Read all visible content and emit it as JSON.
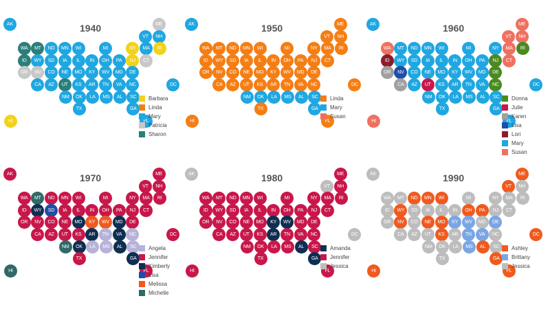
{
  "colors": {
    "Barbara": "#f2d21b",
    "Linda": "#f57e14",
    "Mary": "#1fa7e1",
    "Patricia": "#c8c8c8",
    "Sharon": "#2a7f7b",
    "Susan": "#f07060",
    "Donna": "#4a8a20",
    "Julie": "#c8174a",
    "Karen": "#a0a0a0",
    "Lisa": "#1e4fa8",
    "Lori": "#8c1c2c",
    "Angela": "#b7b2d8",
    "Jennifer": "#c8174a",
    "Kimberly": "#0f2e52",
    "Melissa": "#f05a1e",
    "Michelle": "#2f6a67",
    "Amanda": "#0f2e52",
    "Jessica": "#bdbdbd",
    "Ashley": "#f05a1e",
    "Brittany": "#7aa6e6"
  },
  "panels": [
    {
      "year": "1940",
      "legend": [
        "Barbara",
        "Linda",
        "Mary",
        "Patricia",
        "Sharon"
      ],
      "states": {
        "AK": "Mary",
        "ME": "Patricia",
        "VT": "Mary",
        "NH": "Mary",
        "WA": "Sharon",
        "MT": "Sharon",
        "ND": "Mary",
        "MN": "Mary",
        "WI": "Mary",
        "MI": "Mary",
        "NY": "Barbara",
        "MA": "Mary",
        "RI": "Barbara",
        "ID": "Sharon",
        "WY": "Mary",
        "SD": "Mary",
        "IA": "Mary",
        "IL": "Mary",
        "IN": "Mary",
        "OH": "Mary",
        "PA": "Mary",
        "NJ": "Barbara",
        "CT": "Patricia",
        "OR": "Patricia",
        "NV": "Patricia",
        "CO": "Mary",
        "NE": "Mary",
        "MO": "Mary",
        "KY": "Mary",
        "WV": "Mary",
        "MD": "Mary",
        "DE": "Mary",
        "CA": "Mary",
        "AZ": "Mary",
        "UT": "Sharon",
        "KS": "Mary",
        "AR": "Mary",
        "TN": "Mary",
        "VA": "Mary",
        "NC": "Mary",
        "DC": "Mary",
        "NM": "Mary",
        "OK": "Mary",
        "LA": "Mary",
        "MS": "Mary",
        "AL": "Mary",
        "SC": "Mary",
        "TX": "Mary",
        "GA": "Mary",
        "HI": "Barbara",
        "FL": "Mary"
      }
    },
    {
      "year": "1950",
      "legend": [
        "Linda",
        "Mary",
        "Susan"
      ],
      "states": {
        "AK": "Mary",
        "ME": "Linda",
        "VT": "Linda",
        "NH": "Linda",
        "WA": "Linda",
        "MT": "Linda",
        "ND": "Linda",
        "MN": "Linda",
        "WI": "Linda",
        "MI": "Linda",
        "NY": "Linda",
        "MA": "Linda",
        "RI": "Linda",
        "ID": "Linda",
        "WY": "Linda",
        "SD": "Linda",
        "IA": "Linda",
        "IL": "Linda",
        "IN": "Linda",
        "OH": "Linda",
        "PA": "Linda",
        "NJ": "Linda",
        "CT": "Linda",
        "OR": "Linda",
        "NV": "Linda",
        "CO": "Linda",
        "NE": "Linda",
        "MO": "Linda",
        "KY": "Linda",
        "WV": "Linda",
        "MD": "Linda",
        "DE": "Linda",
        "CA": "Linda",
        "AZ": "Linda",
        "UT": "Linda",
        "KS": "Linda",
        "AR": "Linda",
        "TN": "Linda",
        "VA": "Linda",
        "NC": "Linda",
        "DC": "Linda",
        "NM": "Mary",
        "OK": "Mary",
        "LA": "Mary",
        "MS": "Mary",
        "AL": "Mary",
        "SC": "Mary",
        "TX": "Linda",
        "GA": "Mary",
        "HI": "Linda",
        "FL": "Linda"
      }
    },
    {
      "year": "1960",
      "legend": [
        "Donna",
        "Julie",
        "Karen",
        "Lisa",
        "Lori",
        "Mary",
        "Susan"
      ],
      "states": {
        "AK": "Mary",
        "ME": "Susan",
        "VT": "Susan",
        "NH": "Susan",
        "WA": "Susan",
        "MT": "Mary",
        "ND": "Mary",
        "MN": "Mary",
        "WI": "Mary",
        "MI": "Mary",
        "NY": "Mary",
        "MA": "Susan",
        "RI": "Donna",
        "ID": "Lori",
        "WY": "Mary",
        "SD": "Mary",
        "IA": "Mary",
        "IL": "Mary",
        "IN": "Mary",
        "OH": "Mary",
        "PA": "Mary",
        "NJ": "Donna",
        "CT": "Susan",
        "OR": "Karen",
        "NV": "Lisa",
        "CO": "Mary",
        "NE": "Mary",
        "MO": "Mary",
        "KY": "Mary",
        "WV": "Mary",
        "MD": "Mary",
        "DE": "Donna",
        "CA": "Karen",
        "AZ": "Mary",
        "UT": "Julie",
        "KS": "Mary",
        "AR": "Mary",
        "TN": "Mary",
        "VA": "Mary",
        "NC": "Donna",
        "DC": "Mary",
        "NM": "Mary",
        "OK": "Mary",
        "LA": "Mary",
        "MS": "Mary",
        "AL": "Mary",
        "SC": "Mary",
        "TX": "Mary",
        "GA": "Mary",
        "HI": "Susan",
        "FL": "Mary"
      }
    },
    {
      "year": "1970",
      "legend": [
        "Angela",
        "Jennifer",
        "Kimberly",
        "Lisa",
        "Melissa",
        "Michelle"
      ],
      "states": {
        "AK": "Jennifer",
        "ME": "Jennifer",
        "VT": "Jennifer",
        "NH": "Jennifer",
        "WA": "Jennifer",
        "MT": "Michelle",
        "ND": "Jennifer",
        "MN": "Jennifer",
        "WI": "Jennifer",
        "MI": "Jennifer",
        "NY": "Jennifer",
        "MA": "Jennifer",
        "RI": "Jennifer",
        "ID": "Jennifer",
        "WY": "Kimberly",
        "SD": "Lisa",
        "IA": "Jennifer",
        "IL": "Jennifer",
        "IN": "Jennifer",
        "OH": "Jennifer",
        "PA": "Jennifer",
        "NJ": "Jennifer",
        "CT": "Jennifer",
        "OR": "Jennifer",
        "NV": "Jennifer",
        "CO": "Jennifer",
        "NE": "Jennifer",
        "MO": "Kimberly",
        "KY": "Melissa",
        "WV": "Melissa",
        "MD": "Kimberly",
        "DE": "Jennifer",
        "CA": "Jennifer",
        "AZ": "Jennifer",
        "UT": "Jennifer",
        "KS": "Jennifer",
        "AR": "Kimberly",
        "TN": "Angela",
        "VA": "Kimberly",
        "NC": "Angela",
        "DC": "Jennifer",
        "NM": "Michelle",
        "OK": "Kimberly",
        "LA": "Angela",
        "MS": "Angela",
        "AL": "Kimberly",
        "SC": "Angela",
        "TX": "Jennifer",
        "GA": "Kimberly",
        "HI": "Michelle",
        "FL": "Jennifer"
      }
    },
    {
      "year": "1980",
      "legend": [
        "Amanda",
        "Jennifer",
        "Jessica"
      ],
      "states": {
        "AK": "Jessica",
        "ME": "Jennifer",
        "VT": "Jessica",
        "NH": "Jennifer",
        "WA": "Jennifer",
        "MT": "Jennifer",
        "ND": "Jennifer",
        "MN": "Jennifer",
        "WI": "Jennifer",
        "MI": "Jennifer",
        "NY": "Jennifer",
        "MA": "Jennifer",
        "RI": "Jennifer",
        "ID": "Jennifer",
        "WY": "Jennifer",
        "SD": "Jennifer",
        "IA": "Jennifer",
        "IL": "Jennifer",
        "IN": "Jennifer",
        "OH": "Jennifer",
        "PA": "Jennifer",
        "NJ": "Jennifer",
        "CT": "Jennifer",
        "OR": "Jennifer",
        "NV": "Jennifer",
        "CO": "Jennifer",
        "NE": "Jennifer",
        "MO": "Jennifer",
        "KY": "Amanda",
        "WV": "Amanda",
        "MD": "Jennifer",
        "DE": "Jennifer",
        "CA": "Jennifer",
        "AZ": "Jennifer",
        "UT": "Jennifer",
        "KS": "Jennifer",
        "AR": "Amanda",
        "TN": "Jennifer",
        "VA": "Jennifer",
        "NC": "Jennifer",
        "DC": "Jessica",
        "NM": "Jennifer",
        "OK": "Jennifer",
        "LA": "Jennifer",
        "MS": "Jennifer",
        "AL": "Amanda",
        "SC": "Jennifer",
        "TX": "Jennifer",
        "GA": "Amanda",
        "HI": "Jennifer",
        "FL": "Jennifer"
      }
    },
    {
      "year": "1990",
      "legend": [
        "Ashley",
        "Brittany",
        "Jessica"
      ],
      "states": {
        "AK": "Jessica",
        "ME": "Ashley",
        "VT": "Ashley",
        "NH": "Jessica",
        "WA": "Jessica",
        "MT": "Jessica",
        "ND": "Ashley",
        "MN": "Ashley",
        "WI": "Ashley",
        "MI": "Jessica",
        "NY": "Jessica",
        "MA": "Jessica",
        "RI": "Jessica",
        "ID": "Jessica",
        "WY": "Ashley",
        "SD": "Jessica",
        "IA": "Jessica",
        "IL": "Jessica",
        "IN": "Jessica",
        "OH": "Ashley",
        "PA": "Ashley",
        "NJ": "Jessica",
        "CT": "Jessica",
        "OR": "Jessica",
        "NV": "Ashley",
        "CO": "Jessica",
        "NE": "Ashley",
        "MO": "Ashley",
        "KY": "Brittany",
        "WV": "Brittany",
        "MD": "Jessica",
        "DE": "Brittany",
        "CA": "Jessica",
        "AZ": "Jessica",
        "UT": "Jessica",
        "KS": "Ashley",
        "AR": "Jessica",
        "TN": "Brittany",
        "VA": "Brittany",
        "NC": "Jessica",
        "DC": "Ashley",
        "NM": "Jessica",
        "OK": "Jessica",
        "LA": "Jessica",
        "MS": "Brittany",
        "AL": "Ashley",
        "SC": "Jessica",
        "TX": "Jessica",
        "GA": "Ashley",
        "HI": "Ashley",
        "FL": "Ashley"
      }
    }
  ]
}
